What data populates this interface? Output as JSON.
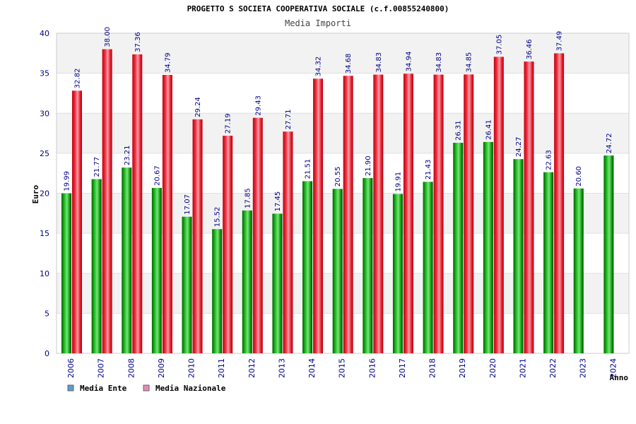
{
  "chart_data": {
    "type": "bar",
    "title": "PROGETTO S SOCIETA COOPERATIVA SOCIALE (c.f.00855240800)",
    "subtitle": "Media Importi",
    "xlabel": "Anno",
    "ylabel": "Euro",
    "ylim": [
      0,
      40
    ],
    "yticks": [
      0,
      5,
      10,
      15,
      20,
      25,
      30,
      35,
      40
    ],
    "categories": [
      "2006",
      "2007",
      "2008",
      "2009",
      "2010",
      "2011",
      "2012",
      "2013",
      "2014",
      "2015",
      "2016",
      "2017",
      "2018",
      "2019",
      "2020",
      "2021",
      "2022",
      "2023",
      "2024"
    ],
    "series": [
      {
        "name": "Media Ente",
        "color": "#00a000",
        "legend_color": "#5b9bd5",
        "values": [
          19.99,
          21.77,
          23.21,
          20.67,
          17.07,
          15.52,
          17.85,
          17.45,
          21.51,
          20.55,
          21.9,
          19.91,
          21.43,
          26.31,
          26.41,
          24.27,
          22.63,
          20.6,
          24.72
        ],
        "labels": [
          "19.99",
          "21.77",
          "23.21",
          "20.67",
          "17.07",
          "15.52",
          "17.85",
          "17.45",
          "21.51",
          "20.55",
          "21.90",
          "19.91",
          "21.43",
          "26.31",
          "26.41",
          "24.27",
          "22.63",
          "20.60",
          "24.72"
        ]
      },
      {
        "name": "Media Nazionale",
        "color": "#e8141e",
        "legend_color": "#e58ab6",
        "values": [
          32.82,
          38.0,
          37.36,
          34.79,
          29.24,
          27.19,
          29.43,
          27.71,
          34.32,
          34.68,
          34.83,
          34.94,
          34.83,
          34.85,
          37.05,
          36.46,
          37.49,
          null,
          null
        ],
        "labels": [
          "32.82",
          "38.00",
          "37.36",
          "34.79",
          "29.24",
          "27.19",
          "29.43",
          "27.71",
          "34.32",
          "34.68",
          "34.83",
          "34.94",
          "34.83",
          "34.85",
          "37.05",
          "36.46",
          "37.49",
          null,
          null
        ]
      }
    ],
    "grid": true,
    "legend": "bottom-left"
  }
}
